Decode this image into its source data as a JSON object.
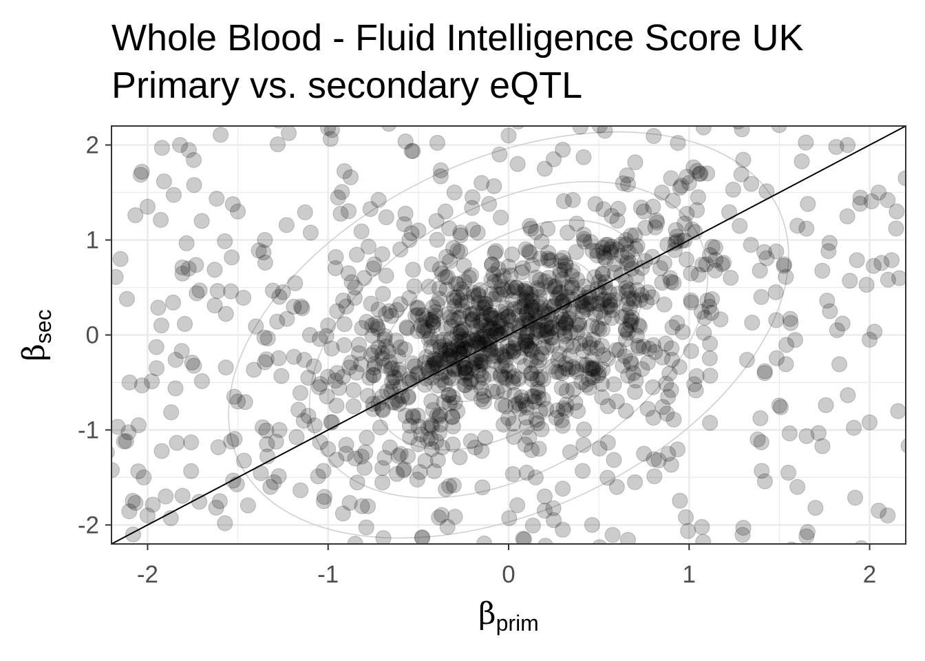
{
  "chart_data": {
    "type": "scatter",
    "title": "Whole Blood - Fluid Intelligence Score UK",
    "subtitle": "Primary vs. secondary eQTL",
    "xlabel": {
      "symbol": "β",
      "subscript": "prim"
    },
    "ylabel": {
      "symbol": "β",
      "subscript": "sec"
    },
    "xlim": [
      -2.2,
      2.2
    ],
    "ylim": [
      -2.2,
      2.2
    ],
    "x_ticks": [
      "-2",
      "-1",
      "0",
      "1",
      "2"
    ],
    "y_ticks": [
      "2",
      "1",
      "0",
      "-1",
      "-2"
    ],
    "grid": true,
    "reference_line": {
      "slope": 1,
      "intercept": 0
    },
    "density_contours": true,
    "point_color": "#000000",
    "point_opacity": 0.2,
    "contour_color": "#d0d0d0",
    "n_points_approx": 1300,
    "points": [
      [
        -0.68,
        0.22
      ],
      [
        -0.66,
        0.25
      ],
      [
        -0.65,
        0.2
      ],
      [
        0.33,
        0.5
      ],
      [
        0.35,
        0.52
      ],
      [
        0.85,
        0.55
      ],
      [
        0.9,
        0.56
      ],
      [
        0.88,
        0.95
      ],
      [
        -1.52,
        -0.65
      ],
      [
        -1.5,
        -0.7
      ],
      [
        -1.3,
        -1.55
      ],
      [
        -1.32,
        -1.6
      ],
      [
        1.4,
        -1.13
      ],
      [
        1.38,
        -1.1
      ],
      [
        -1.92,
        1.97
      ],
      [
        -1.82,
        2.0
      ],
      [
        1.78,
        0.25
      ],
      [
        1.82,
        0.05
      ],
      [
        1.85,
        0.12
      ],
      [
        -2.0,
        1.35
      ],
      [
        -1.7,
        1.2
      ],
      [
        -1.5,
        1.3
      ],
      [
        -1.35,
        1.0
      ],
      [
        -1.95,
        -0.35
      ],
      [
        -2.1,
        -0.5
      ],
      [
        -2.05,
        -0.95
      ],
      [
        -2.0,
        -1.9
      ],
      [
        -2.08,
        -2.1
      ],
      [
        -1.9,
        -1.7
      ],
      [
        -1.6,
        -1.75
      ],
      [
        2.05,
        1.5
      ],
      [
        2.1,
        1.42
      ],
      [
        2.15,
        1.3
      ],
      [
        2.0,
        -0.05
      ],
      [
        2.05,
        -1.85
      ],
      [
        2.1,
        -1.9
      ],
      [
        2.2,
        1.65
      ],
      [
        -2.15,
        0.8
      ],
      [
        1.6,
        1.15
      ],
      [
        1.65,
        1.12
      ],
      [
        1.4,
        0.4
      ],
      [
        1.48,
        0.45
      ],
      [
        1.55,
        -1.45
      ],
      [
        1.6,
        -1.6
      ],
      [
        1.7,
        -1.82
      ],
      [
        1.65,
        -2.12
      ],
      [
        -1.25,
        0.45
      ],
      [
        -1.15,
        0.3
      ],
      [
        -1.1,
        0.0
      ],
      [
        -0.95,
        -0.4
      ],
      [
        -1.05,
        -0.55
      ],
      [
        -1.0,
        -1.2
      ],
      [
        -0.9,
        -1.25
      ],
      [
        -0.85,
        -1.3
      ],
      [
        -0.5,
        -1.15
      ],
      [
        -0.45,
        -1.1
      ],
      [
        -0.4,
        -1.12
      ],
      [
        0.1,
        -1.45
      ],
      [
        0.15,
        -1.5
      ],
      [
        0.2,
        -1.7
      ],
      [
        0.2,
        -1.85
      ],
      [
        0.25,
        -1.95
      ],
      [
        0.3,
        -2.05
      ],
      [
        0.6,
        -1.6
      ],
      [
        0.7,
        -1.55
      ],
      [
        0.75,
        -1.25
      ],
      [
        0.55,
        -0.75
      ],
      [
        0.6,
        -0.7
      ],
      [
        0.65,
        -0.8
      ],
      [
        0.7,
        -0.6
      ],
      [
        0.8,
        -0.55
      ],
      [
        0.9,
        -0.58
      ],
      [
        0.45,
        -0.35
      ],
      [
        0.5,
        -0.4
      ],
      [
        0.55,
        -0.25
      ],
      [
        0.4,
        0.35
      ],
      [
        0.45,
        0.4
      ],
      [
        0.55,
        0.95
      ],
      [
        0.6,
        0.9
      ],
      [
        0.65,
        1.0
      ],
      [
        0.7,
        1.05
      ],
      [
        0.75,
        1.3
      ],
      [
        0.8,
        1.35
      ],
      [
        0.85,
        1.5
      ],
      [
        0.9,
        1.65
      ],
      [
        0.95,
        1.55
      ],
      [
        1.0,
        1.6
      ],
      [
        1.05,
        1.45
      ],
      [
        1.1,
        1.7
      ],
      [
        0.2,
        1.75
      ],
      [
        0.25,
        1.85
      ],
      [
        0.3,
        1.95
      ],
      [
        0.05,
        1.8
      ],
      [
        0.0,
        2.1
      ],
      [
        -0.05,
        1.9
      ],
      [
        -0.15,
        1.6
      ],
      [
        -0.2,
        1.45
      ],
      [
        -0.3,
        1.5
      ],
      [
        -0.35,
        1.3
      ],
      [
        -0.4,
        1.2
      ],
      [
        -0.5,
        1.1
      ],
      [
        -0.55,
        1.0
      ],
      [
        -0.6,
        0.9
      ],
      [
        -0.7,
        0.85
      ],
      [
        -0.75,
        0.7
      ],
      [
        -0.8,
        0.6
      ],
      [
        -0.85,
        0.5
      ],
      [
        -0.9,
        0.3
      ],
      [
        -0.95,
        0.25
      ],
      [
        -1.0,
        0.1
      ],
      [
        -0.3,
        0.3
      ],
      [
        -0.25,
        0.25
      ],
      [
        -0.2,
        0.15
      ],
      [
        -0.15,
        0.1
      ],
      [
        -0.1,
        0.05
      ],
      [
        -0.05,
        0.0
      ],
      [
        0.0,
        0.05
      ],
      [
        0.05,
        0.1
      ],
      [
        0.1,
        0.15
      ],
      [
        0.15,
        0.2
      ],
      [
        0.2,
        0.25
      ],
      [
        0.25,
        0.3
      ],
      [
        0.3,
        0.35
      ],
      [
        -0.35,
        -0.2
      ],
      [
        -0.3,
        -0.25
      ],
      [
        -0.25,
        -0.3
      ],
      [
        -0.2,
        -0.35
      ],
      [
        -0.15,
        -0.2
      ],
      [
        -0.1,
        -0.15
      ],
      [
        -0.4,
        -0.3
      ],
      [
        -0.45,
        -0.35
      ],
      [
        -0.5,
        -0.4
      ],
      [
        -0.55,
        -0.5
      ],
      [
        -0.6,
        -0.55
      ],
      [
        -0.65,
        -0.6
      ],
      [
        -0.7,
        -0.65
      ],
      [
        -0.72,
        -0.72
      ],
      [
        -0.75,
        -0.78
      ]
    ]
  }
}
